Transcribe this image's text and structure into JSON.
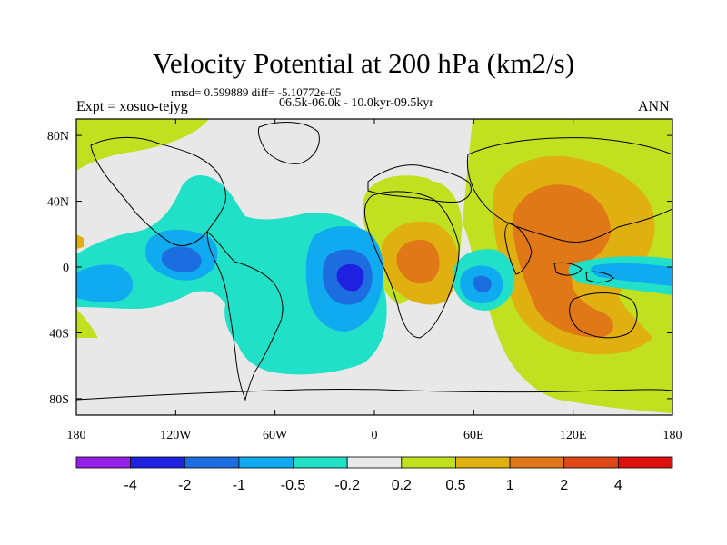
{
  "title": "Velocity Potential at 200 hPa (km2/s)",
  "stats_line": "rmsd= 0.599889 diff= -5.10772e-05",
  "experiment_label": "Expt = xosuo-tejyg",
  "period_label": "06.5k-06.0k - 10.0kyr-09.5kyr",
  "season_label": "ANN",
  "axes": {
    "x_ticks": [
      {
        "lon": -180,
        "label": "180"
      },
      {
        "lon": -120,
        "label": "120W"
      },
      {
        "lon": -60,
        "label": "60W"
      },
      {
        "lon": 0,
        "label": "0"
      },
      {
        "lon": 60,
        "label": "60E"
      },
      {
        "lon": 120,
        "label": "120E"
      },
      {
        "lon": 180,
        "label": "180"
      }
    ],
    "y_ticks": [
      {
        "lat": 80,
        "label": "80N"
      },
      {
        "lat": 40,
        "label": "40N"
      },
      {
        "lat": 0,
        "label": "0"
      },
      {
        "lat": -40,
        "label": "40S"
      },
      {
        "lat": -80,
        "label": "80S"
      }
    ],
    "lon_range": [
      -180,
      180
    ],
    "lat_range": [
      -90,
      90
    ]
  },
  "colorbar": {
    "colors": [
      "#9420e8",
      "#2020e0",
      "#1c6ee0",
      "#10aaf0",
      "#20e0c8",
      "#e8e8e8",
      "#c0e020",
      "#e0b010",
      "#e07818",
      "#e04818",
      "#e01010"
    ],
    "labels": [
      "-4",
      "-2",
      "-1",
      "-0.5",
      "-0.2",
      "0.2",
      "0.5",
      "1",
      "2",
      "4"
    ]
  },
  "colors": {
    "neutral": "#e8e8e8",
    "coast": "#000000"
  }
}
